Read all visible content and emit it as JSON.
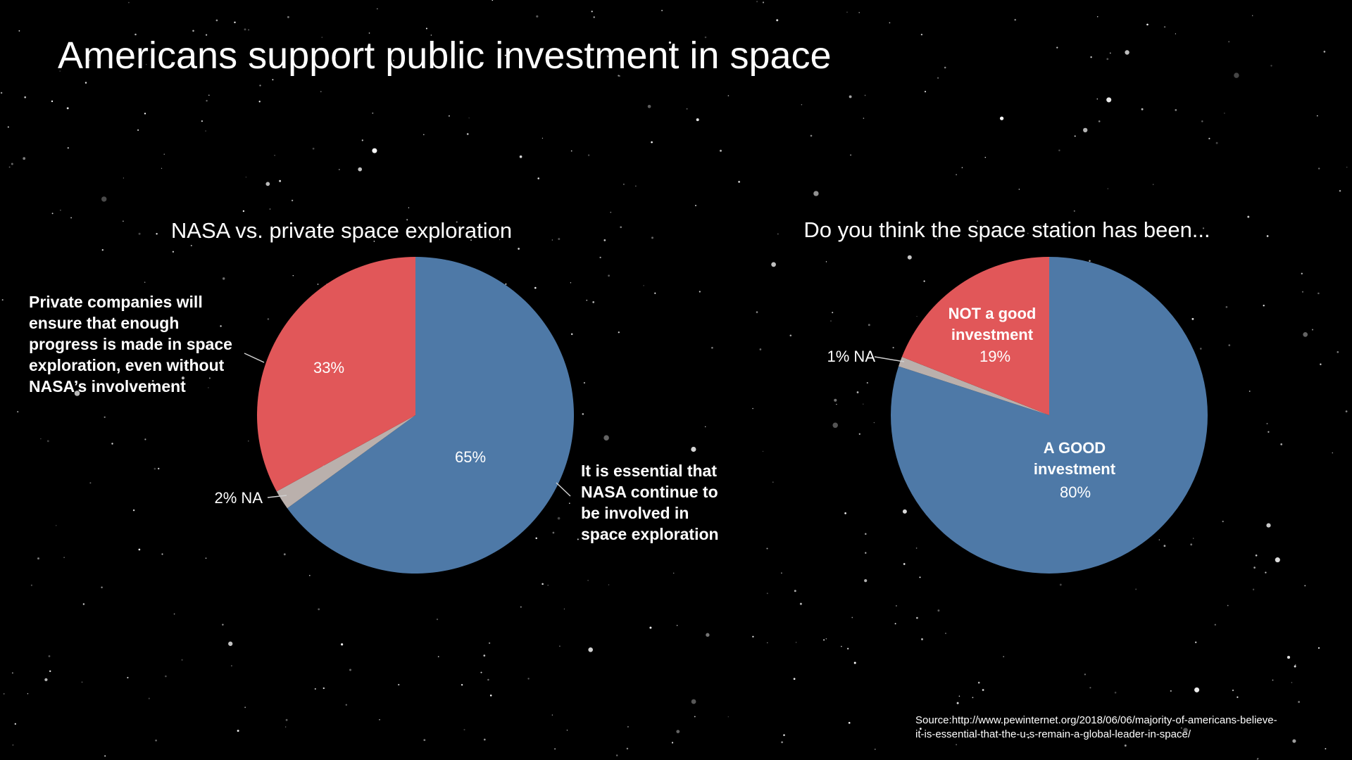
{
  "slide": {
    "title": "Americans support public investment in space",
    "source": "Source:http://www.pewinternet.org/2018/06/06/majority-of-americans-believe-it-is-essential-that-the-u-s-remain-a-global-leader-in-space/"
  },
  "colors": {
    "background": "#000000",
    "blue": "#4e79a7",
    "red": "#e15759",
    "gray": "#bab0ac",
    "text": "#ffffff"
  },
  "chart_data": [
    {
      "type": "pie",
      "title": "NASA vs. private space exploration",
      "slices": [
        {
          "label_lines": [
            "It is essential that",
            "NASA continue to",
            "be involved in",
            "space exploration"
          ],
          "value": 65,
          "value_label": "65%",
          "color": "#4e79a7"
        },
        {
          "label": "2% NA",
          "value": 2,
          "color": "#bab0ac"
        },
        {
          "label_lines": [
            "Private companies will",
            "ensure that enough",
            "progress is made in space",
            "exploration, even without",
            "NASA’s involvement"
          ],
          "value": 33,
          "value_label": "33%",
          "color": "#e15759"
        }
      ]
    },
    {
      "type": "pie",
      "title": "Do you think the space station has been...",
      "slices": [
        {
          "label_lines": [
            "A GOOD",
            "investment"
          ],
          "value": 80,
          "value_label": "80%",
          "color": "#4e79a7"
        },
        {
          "label": "1% NA",
          "value": 1,
          "color": "#bab0ac"
        },
        {
          "label_lines": [
            "NOT a good",
            "investment"
          ],
          "value": 19,
          "value_label": "19%",
          "color": "#e15759"
        }
      ]
    }
  ]
}
